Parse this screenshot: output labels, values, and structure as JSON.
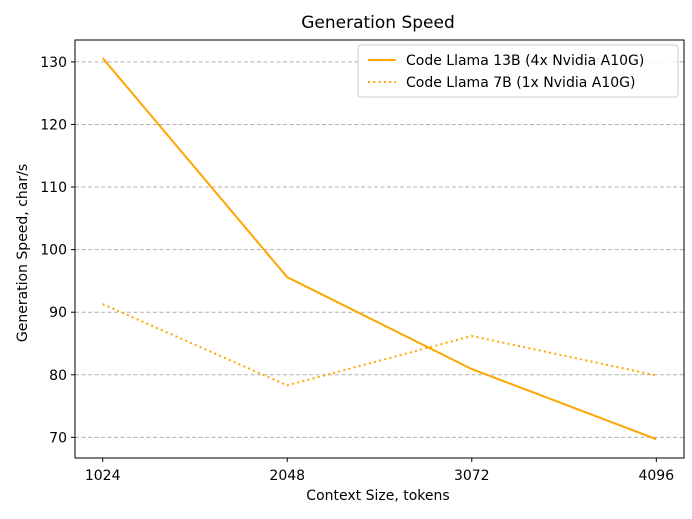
{
  "chart_data": {
    "type": "line",
    "title": "Generation Speed",
    "xlabel": "Context Size, tokens",
    "ylabel": "Generation Speed, char/s",
    "x": [
      1024,
      2048,
      3072,
      4096
    ],
    "x_tick_labels": [
      "1024",
      "2048",
      "3072",
      "4096"
    ],
    "y_ticks": [
      70,
      80,
      90,
      100,
      110,
      120,
      130
    ],
    "y_tick_labels": [
      "70",
      "80",
      "90",
      "100",
      "110",
      "120",
      "130"
    ],
    "ylim": [
      66.7,
      133.5
    ],
    "grid": "y-dashed",
    "legend_position": "top-right",
    "series": [
      {
        "name": "Code Llama 13B (4x Nvidia A10G)",
        "values": [
          130.6,
          95.6,
          80.9,
          69.7
        ],
        "color": "#FFA500",
        "style": "solid"
      },
      {
        "name": "Code Llama 7B (1x Nvidia A10G)",
        "values": [
          91.3,
          78.3,
          86.2,
          79.9
        ],
        "color": "#FFA500",
        "style": "dotted"
      }
    ]
  }
}
